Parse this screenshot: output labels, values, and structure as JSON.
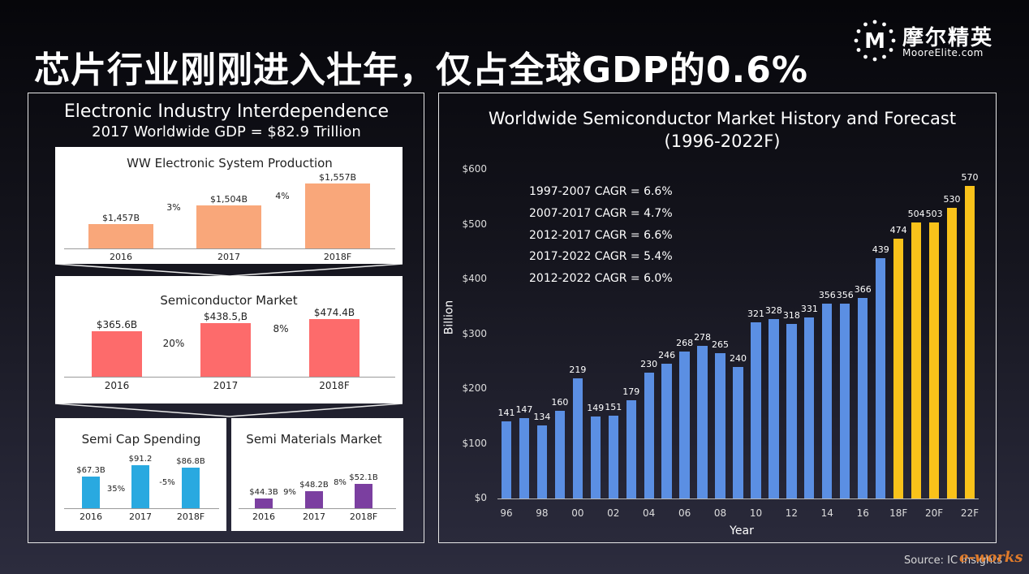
{
  "title": "芯片行业刚刚进入壮年，仅占全球GDP的0.6%",
  "logo": {
    "icon": "M",
    "cn": "摩尔精英",
    "en": "MooreElite.com"
  },
  "left_panel": {
    "heading": "Electronic Industry Interdependence",
    "subheading": "2017 Worldwide GDP = $82.9 Trillion"
  },
  "source": "Source: IC Insights",
  "watermark": "e-works",
  "colors": {
    "ww": "#f9a77a",
    "semi": "#fd6b6b",
    "cap": "#29a9e0",
    "mat": "#7b3fa0",
    "hist": "#5b8fe3",
    "fcst": "#f9c21a"
  },
  "chart_data": [
    {
      "type": "bar",
      "title": "WW Electronic System Production",
      "categories": [
        "2016",
        "2017",
        "2018F"
      ],
      "values": [
        1457,
        1504,
        1557
      ],
      "data_labels": [
        "$1,457B",
        "$1,504B",
        "$1,557B"
      ],
      "growth_labels": [
        "3%",
        "4%"
      ]
    },
    {
      "type": "bar",
      "title": "Semiconductor Market",
      "categories": [
        "2016",
        "2017",
        "2018F"
      ],
      "values": [
        365.6,
        438.5,
        474.4
      ],
      "data_labels": [
        "$365.6B",
        "$438.5,B",
        "$474.4B"
      ],
      "growth_labels": [
        "20%",
        "8%"
      ]
    },
    {
      "type": "bar",
      "title": "Semi Cap Spending",
      "categories": [
        "2016",
        "2017",
        "2018F"
      ],
      "values": [
        67.3,
        91.2,
        86.8
      ],
      "data_labels": [
        "$67.3B",
        "$91.2",
        "$86.8B"
      ],
      "growth_labels": [
        "35%",
        "-5%"
      ]
    },
    {
      "type": "bar",
      "title": "Semi Materials Market",
      "categories": [
        "2016",
        "2017",
        "2018F"
      ],
      "values": [
        44.3,
        48.2,
        52.1
      ],
      "data_labels": [
        "$44.3B",
        "$48.2B",
        "$52.1B"
      ],
      "growth_labels": [
        "9%",
        "8%"
      ]
    },
    {
      "type": "bar",
      "title": "Worldwide Semiconductor Market History and Forecast (1996-2022F)",
      "xlabel": "Year",
      "ylabel": "Billion",
      "ylim": [
        0,
        600
      ],
      "yticks": [
        "$0",
        "$100",
        "$200",
        "$300",
        "$400",
        "$500",
        "$600"
      ],
      "ytick_values": [
        0,
        100,
        200,
        300,
        400,
        500,
        600
      ],
      "x": [
        "1996",
        "1997",
        "1998",
        "1999",
        "2000",
        "2001",
        "2002",
        "2003",
        "2004",
        "2005",
        "2006",
        "2007",
        "2008",
        "2009",
        "2010",
        "2011",
        "2012",
        "2013",
        "2014",
        "2015",
        "2016",
        "2017",
        "2018F",
        "2019F",
        "2020F",
        "2021F",
        "2022F"
      ],
      "values": [
        141,
        147,
        134,
        160,
        219,
        149,
        151,
        179,
        230,
        246,
        268,
        278,
        265,
        240,
        321,
        328,
        318,
        331,
        356,
        356,
        366,
        439,
        474,
        504,
        503,
        530,
        570
      ],
      "forecast_from_index": 22,
      "xtick_labels": [
        "96",
        "",
        "98",
        "",
        "00",
        "",
        "02",
        "",
        "04",
        "",
        "06",
        "",
        "08",
        "",
        "10",
        "",
        "12",
        "",
        "14",
        "",
        "16",
        "",
        "18F",
        "",
        "20F",
        "",
        "22F"
      ],
      "annotations": [
        "1997-2007 CAGR = 6.6%",
        "2007-2017 CAGR = 4.7%",
        "2012-2017 CAGR = 6.6%",
        "2017-2022 CAGR = 5.4%",
        "2012-2022 CAGR = 6.0%"
      ]
    }
  ]
}
